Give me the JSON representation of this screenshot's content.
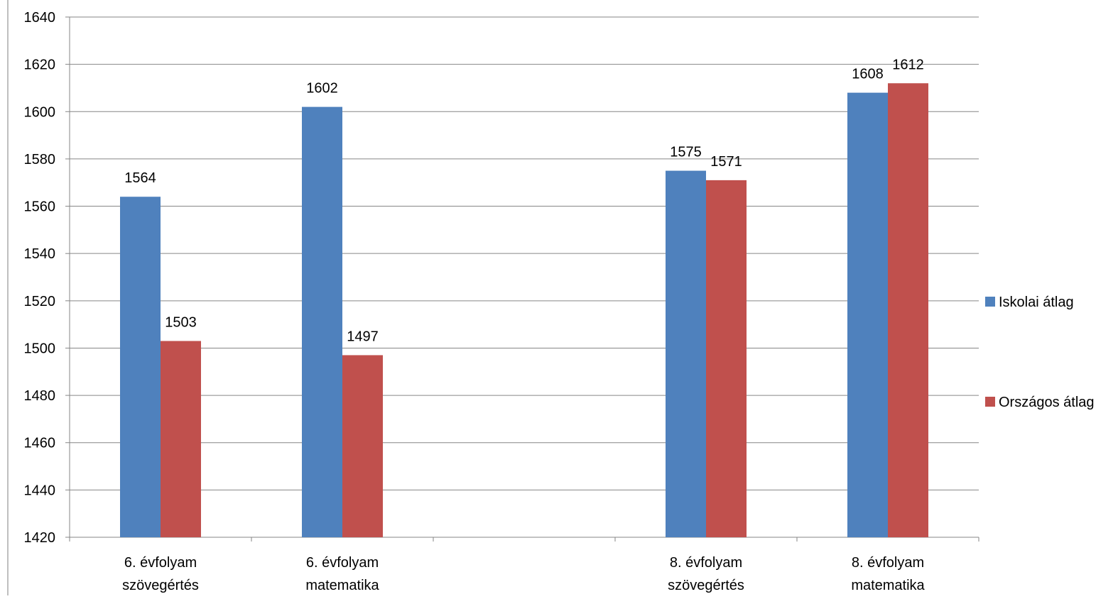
{
  "chart_data": {
    "type": "bar",
    "categories": [
      {
        "lines": [
          "6. évfolyam",
          "szövegértés"
        ]
      },
      {
        "lines": [
          "6. évfolyam",
          "matematika"
        ]
      },
      {
        "lines": [
          "",
          ""
        ]
      },
      {
        "lines": [
          "8. évfolyam",
          "szövegértés"
        ]
      },
      {
        "lines": [
          "8. évfolyam",
          "matematika"
        ]
      }
    ],
    "series": [
      {
        "name": "Iskolai átlag",
        "color": "#4F81BD",
        "values": [
          1564,
          1602,
          null,
          1575,
          1608
        ]
      },
      {
        "name": "Országos átlag",
        "color": "#C0504D",
        "values": [
          1503,
          1497,
          null,
          1571,
          1612
        ]
      }
    ],
    "ylim": [
      1420,
      1640
    ],
    "yticks": [
      1420,
      1440,
      1460,
      1480,
      1500,
      1520,
      1540,
      1560,
      1580,
      1600,
      1620,
      1640
    ],
    "grid": true,
    "legend_position": "right",
    "title": "",
    "xlabel": "",
    "ylabel": ""
  }
}
